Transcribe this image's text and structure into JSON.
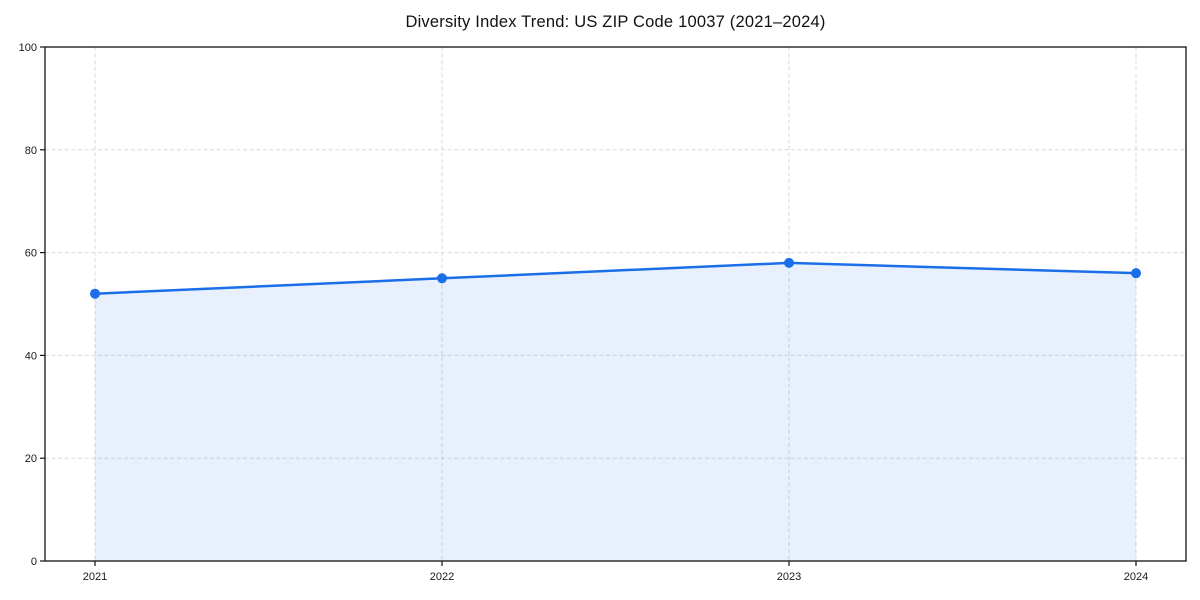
{
  "page": {
    "background": "#ffffff"
  },
  "chart_data": {
    "type": "area",
    "title": "Diversity Index Trend: US ZIP Code 10037 (2021–2024)",
    "categories": [
      "2021",
      "2022",
      "2023",
      "2024"
    ],
    "values": [
      52,
      55,
      58,
      56
    ],
    "xlabel": "",
    "ylabel": "",
    "ylim": [
      0,
      100
    ],
    "yticks": [
      0,
      20,
      40,
      60,
      80,
      100
    ],
    "grid": true,
    "grid_style": "dashed",
    "legend": false,
    "marker": "circle",
    "colors": {
      "line": "#1a6fe8",
      "marker": "#1a6fe8",
      "fill": "#1a6fe8",
      "fill_opacity": 0.1,
      "grid": "#d9d9d9",
      "axis": "#111111",
      "tick_text": "#1a1a1a"
    }
  }
}
